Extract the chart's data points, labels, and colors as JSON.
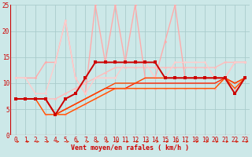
{
  "xlabel": "Vent moyen/en rafales ( km/h )",
  "bg_color": "#cce8e8",
  "grid_color": "#aacccc",
  "xlim": [
    -0.5,
    23.5
  ],
  "ylim": [
    0,
    25
  ],
  "xticks": [
    0,
    1,
    2,
    3,
    4,
    5,
    6,
    7,
    8,
    9,
    10,
    11,
    12,
    13,
    14,
    15,
    16,
    17,
    18,
    19,
    20,
    21,
    22,
    23
  ],
  "yticks": [
    0,
    5,
    10,
    15,
    20,
    25
  ],
  "series": [
    {
      "x": [
        0,
        1,
        2,
        3,
        4,
        5,
        6,
        7,
        8,
        9,
        10,
        11,
        12,
        13,
        14,
        15,
        16,
        17,
        18,
        19,
        20,
        21,
        22,
        23
      ],
      "y": [
        7,
        7,
        7,
        7,
        4,
        7,
        8,
        11,
        14,
        14,
        14,
        14,
        14,
        14,
        14,
        11,
        11,
        11,
        11,
        11,
        11,
        11,
        8,
        11
      ],
      "color": "#cc0000",
      "linewidth": 1.4,
      "marker": "s",
      "markersize": 2.5,
      "zorder": 5
    },
    {
      "x": [
        0,
        1,
        2,
        3,
        4,
        5,
        6,
        7,
        8,
        9,
        10,
        11,
        12,
        13,
        14,
        15,
        16,
        17,
        18,
        19,
        20,
        21,
        22,
        23
      ],
      "y": [
        7,
        7,
        7,
        7,
        4,
        5,
        6,
        7,
        8,
        9,
        9,
        9,
        10,
        10,
        10,
        10,
        10,
        10,
        10,
        10,
        10,
        11,
        10,
        11
      ],
      "color": "#ff2200",
      "linewidth": 1.0,
      "marker": null,
      "markersize": 0,
      "zorder": 4
    },
    {
      "x": [
        0,
        1,
        2,
        3,
        4,
        5,
        6,
        7,
        8,
        9,
        10,
        11,
        12,
        13,
        14,
        15,
        16,
        17,
        18,
        19,
        20,
        21,
        22,
        23
      ],
      "y": [
        7,
        7,
        7,
        7,
        4,
        5,
        6,
        7,
        8,
        9,
        10,
        10,
        10,
        11,
        11,
        11,
        11,
        11,
        11,
        11,
        11,
        11,
        10,
        11
      ],
      "color": "#ff4400",
      "linewidth": 1.0,
      "marker": null,
      "markersize": 0,
      "zorder": 4
    },
    {
      "x": [
        0,
        1,
        2,
        3,
        4,
        5,
        6,
        7,
        8,
        9,
        10,
        11,
        12,
        13,
        14,
        15,
        16,
        17,
        18,
        19,
        20,
        21,
        22,
        23
      ],
      "y": [
        7,
        7,
        7,
        4,
        4,
        4,
        5,
        6,
        7,
        8,
        9,
        9,
        9,
        9,
        9,
        9,
        9,
        9,
        9,
        9,
        9,
        11,
        9,
        11
      ],
      "color": "#ff5500",
      "linewidth": 1.0,
      "marker": null,
      "markersize": 0,
      "zorder": 4
    },
    {
      "x": [
        0,
        1,
        2,
        3,
        4,
        5,
        6,
        7,
        8,
        9,
        10,
        11,
        12,
        13,
        14,
        15,
        16,
        17,
        18,
        19,
        20,
        21,
        22,
        23
      ],
      "y": [
        7,
        7,
        7,
        4,
        4,
        4,
        5,
        6,
        7,
        8,
        9,
        9,
        9,
        9,
        9,
        9,
        9,
        9,
        9,
        9,
        9,
        11,
        9,
        11
      ],
      "color": "#ffaaaa",
      "linewidth": 1.0,
      "marker": "o",
      "markersize": 2.0,
      "zorder": 3
    },
    {
      "x": [
        0,
        1,
        2,
        3,
        4,
        5,
        6,
        7,
        8,
        9,
        10,
        11,
        12,
        13,
        14,
        15,
        16,
        17,
        18,
        19,
        20,
        21,
        22,
        23
      ],
      "y": [
        7,
        7,
        7,
        7,
        7,
        8,
        9,
        10,
        11,
        12,
        13,
        13,
        13,
        13,
        13,
        13,
        13,
        13,
        13,
        13,
        13,
        14,
        14,
        14
      ],
      "color": "#ffbbbb",
      "linewidth": 1.0,
      "marker": "o",
      "markersize": 2.0,
      "zorder": 3
    },
    {
      "x": [
        0,
        1,
        2,
        3,
        4,
        5,
        6,
        7,
        8,
        9,
        10,
        11,
        12,
        13,
        14,
        15,
        16,
        17,
        18,
        19,
        20,
        21,
        22,
        23
      ],
      "y": [
        11,
        11,
        11,
        14,
        14,
        22,
        11,
        8,
        25,
        14,
        25,
        14,
        25,
        11,
        11,
        18,
        25,
        11,
        11,
        11,
        11,
        11,
        14,
        14
      ],
      "color": "#ffaaaa",
      "linewidth": 1.0,
      "marker": "o",
      "markersize": 2.0,
      "zorder": 3
    },
    {
      "x": [
        0,
        1,
        2,
        3,
        4,
        5,
        6,
        7,
        8,
        9,
        10,
        11,
        12,
        13,
        14,
        15,
        16,
        17,
        18,
        19,
        20,
        21,
        22,
        23
      ],
      "y": [
        11,
        11,
        8,
        8,
        14,
        22,
        11,
        8,
        11,
        11,
        11,
        14,
        14,
        14,
        11,
        11,
        14,
        14,
        14,
        14,
        11,
        11,
        14,
        14
      ],
      "color": "#ffcccc",
      "linewidth": 1.0,
      "marker": "o",
      "markersize": 2.0,
      "zorder": 3
    }
  ],
  "arrow_color": "#dd2200",
  "axis_color": "#cc0000",
  "label_fontsize": 6.0,
  "tick_fontsize": 5.5
}
